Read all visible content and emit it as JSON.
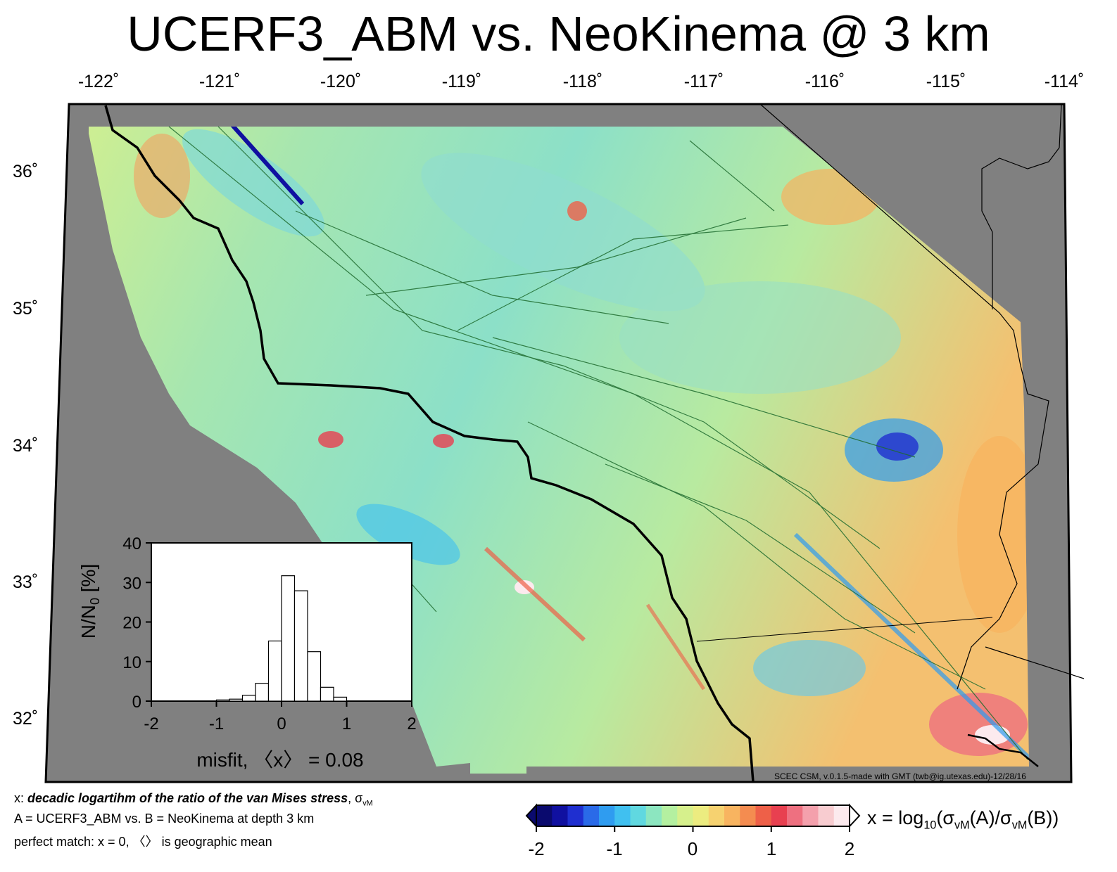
{
  "title": "UCERF3_ABM vs. NeoKinema @ 3 km",
  "longitude_labels": [
    "-122˚",
    "-121˚",
    "-120˚",
    "-119˚",
    "-118˚",
    "-117˚",
    "-116˚",
    "-115˚",
    "-114˚"
  ],
  "latitude_labels": [
    "36˚",
    "35˚",
    "34˚",
    "33˚",
    "32˚"
  ],
  "histogram": {
    "ylabel_main": "N/N",
    "ylabel_sub": "0",
    "ylabel_unit": " [%]",
    "y_ticks": [
      "40",
      "30",
      "20",
      "10",
      "0"
    ],
    "x_ticks": [
      "-2",
      "-1",
      "0",
      "1",
      "2"
    ],
    "xlabel": "misfit, 〈x〉 = 0.08",
    "chart_data": {
      "type": "bar",
      "bin_width": 0.2,
      "bin_centers": [
        -0.9,
        -0.7,
        -0.5,
        -0.3,
        -0.1,
        0.1,
        0.3,
        0.5,
        0.7,
        0.9
      ],
      "values": [
        0.3,
        0.5,
        1.5,
        4.5,
        15.2,
        31.7,
        27.9,
        12.5,
        3.5,
        1.0
      ],
      "xlim": [
        -2,
        2
      ],
      "ylim": [
        0,
        40
      ]
    }
  },
  "footer": {
    "line1_prefix": "x: ",
    "line1_bold": "decadic logartihm of the ratio of the van Mises stress",
    "line1_suffix": ", σ",
    "line1_sub": "vM",
    "line2": "A = UCERF3_ABM vs.  B = NeoKinema at depth 3 km",
    "line3": "perfect match: x = 0, 〈〉 is geographic mean"
  },
  "credit": "SCEC CSM, v.0.1.5-made with GMT (twb@ig.utexas.edu)-12/28/16",
  "colorbar": {
    "tick_labels": [
      "-2",
      "-1",
      "0",
      "1",
      "2"
    ],
    "label_prefix": "x = log",
    "label_sub1": "10",
    "label_mid1": "(σ",
    "label_sub2": "vM",
    "label_mid2": "(A)/σ",
    "label_sub3": "vM",
    "label_end": "(B))",
    "colors": [
      "#0a0a6e",
      "#1010a0",
      "#1f2fd0",
      "#2a6ae8",
      "#2f9cf0",
      "#40c0f0",
      "#60d8e0",
      "#8ce6c0",
      "#b4f0a0",
      "#d6f08c",
      "#ecec80",
      "#f6d270",
      "#f8b460",
      "#f48c50",
      "#ee6048",
      "#e84050",
      "#ee7080",
      "#f4a0ac",
      "#f8ccd0",
      "#fceaee"
    ]
  }
}
